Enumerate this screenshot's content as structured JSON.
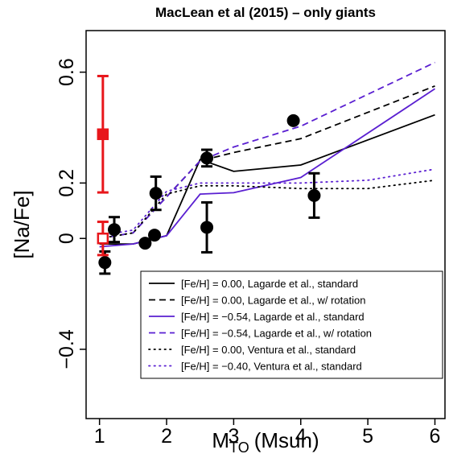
{
  "chart_data": {
    "type": "line",
    "title": "MacLean et al (2015) – only giants",
    "x_label": "M",
    "x_label_subscript": "TO",
    "x_label_unit": "(Msun)",
    "y_label": "[Na/Fe]",
    "xlim": [
      0.8,
      6.15
    ],
    "ylim": [
      -0.65,
      0.75
    ],
    "xticks": [
      1,
      2,
      3,
      4,
      5,
      6
    ],
    "yticks": [
      {
        "value": -0.4,
        "label": "−0.4"
      },
      0,
      0.2,
      0.6
    ],
    "legend": "bottom-right",
    "series": [
      {
        "name": "[Fe/H] = 0.00, Lagarde et al., standard",
        "color": "#000000",
        "dash": "solid",
        "x": [
          1,
          1.5,
          2,
          2.5,
          3,
          4,
          6
        ],
        "values": [
          -0.02,
          -0.02,
          0.01,
          0.285,
          0.242,
          0.265,
          0.446
        ]
      },
      {
        "name": "[Fe/H] = 0.00, Lagarde et al., w/ rotation",
        "color": "#000000",
        "dash": "dashed",
        "x": [
          1,
          1.5,
          2,
          2.5,
          3,
          4,
          6
        ],
        "values": [
          0.0,
          0.02,
          0.15,
          0.28,
          0.31,
          0.36,
          0.55
        ]
      },
      {
        "name": "[Fe/H] = −0.54, Lagarde et al., standard",
        "color": "#5a1fd1",
        "dash": "solid",
        "x": [
          1,
          1.5,
          2,
          2.5,
          3,
          4,
          6
        ],
        "values": [
          -0.03,
          -0.02,
          0.01,
          0.16,
          0.165,
          0.22,
          0.54
        ]
      },
      {
        "name": "[Fe/H] = −0.54, Lagarde et al., w/ rotation",
        "color": "#5a1fd1",
        "dash": "dashed",
        "x": [
          1,
          1.5,
          2,
          2.5,
          3,
          4,
          6
        ],
        "values": [
          0.0,
          0.02,
          0.15,
          0.28,
          0.33,
          0.405,
          0.635
        ]
      },
      {
        "name": "[Fe/H] = 0.00, Ventura et al., standard",
        "color": "#000000",
        "dash": "dotted",
        "x": [
          1,
          1.5,
          2,
          2.5,
          3,
          4,
          5,
          6
        ],
        "values": [
          0.0,
          0.02,
          0.16,
          0.19,
          0.19,
          0.18,
          0.18,
          0.21
        ]
      },
      {
        "name": "[Fe/H] = −0.40, Ventura et al., standard",
        "color": "#5a1fd1",
        "dash": "dotted",
        "x": [
          1,
          1.5,
          2,
          2.5,
          3,
          4,
          5,
          6
        ],
        "values": [
          0.01,
          0.03,
          0.17,
          0.2,
          0.2,
          0.2,
          0.21,
          0.25
        ]
      }
    ],
    "points": [
      {
        "color": "#000000",
        "marker": "circle",
        "x": [
          1.08,
          1.22,
          1.68,
          1.82,
          1.84,
          2.6,
          2.6,
          3.89,
          4.2
        ],
        "values": [
          -0.087,
          0.032,
          -0.017,
          0.012,
          0.163,
          0.29,
          0.04,
          0.425,
          0.155
        ],
        "errors": [
          0.04,
          0.045,
          null,
          null,
          0.06,
          0.03,
          0.09,
          null,
          0.08
        ]
      },
      {
        "color": "#e8161b",
        "marker": "square",
        "filled": [
          true,
          false
        ],
        "x": [
          1.05,
          1.05
        ],
        "values": [
          0.376,
          0.0
        ],
        "errors": [
          0.21,
          0.06
        ]
      }
    ]
  }
}
